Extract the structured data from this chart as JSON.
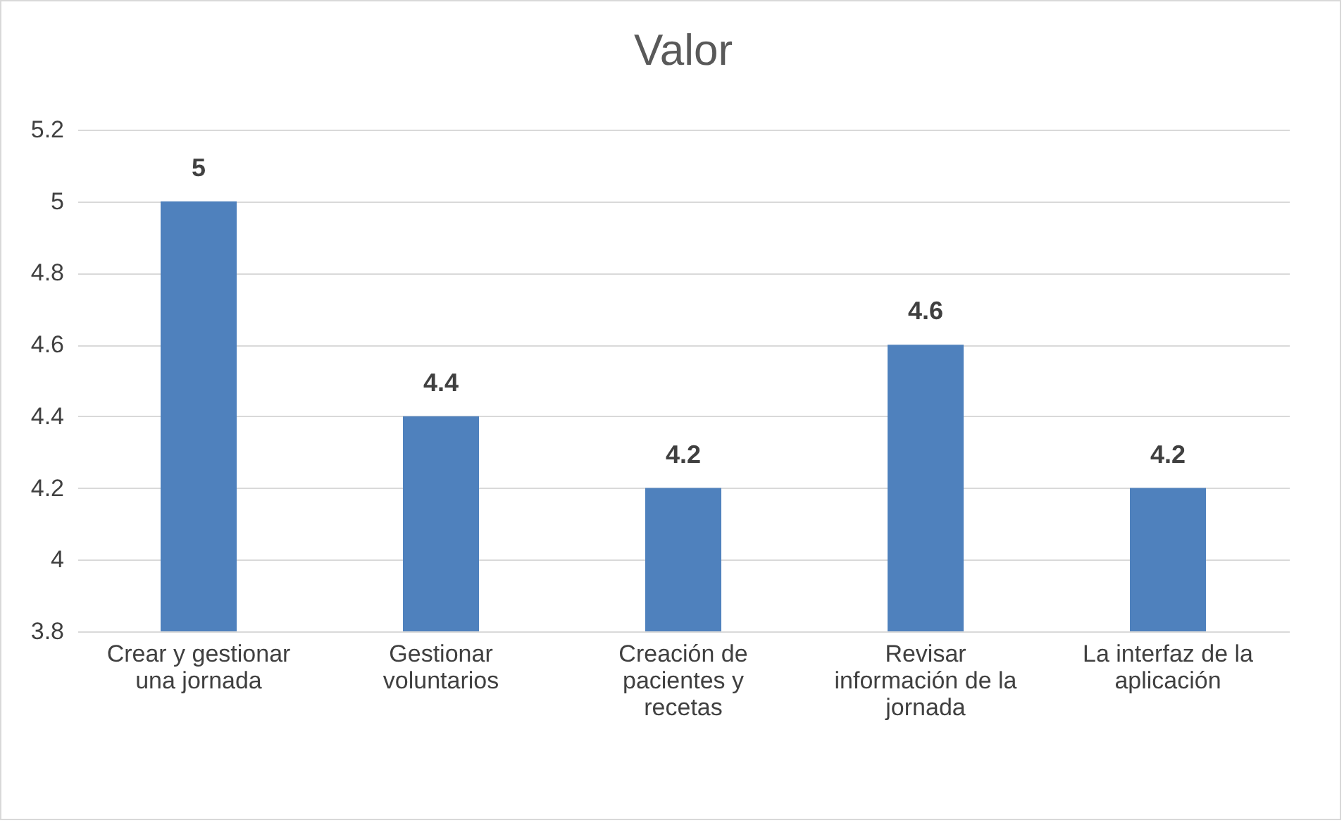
{
  "chart_data": {
    "type": "bar",
    "title": "Valor",
    "categories": [
      "Crear y gestionar una jornada",
      "Gestionar voluntarios",
      "Creación de pacientes y recetas",
      "Revisar información de la jornada",
      "La interfaz de la aplicación"
    ],
    "values": [
      5,
      4.4,
      4.2,
      4.6,
      4.2
    ],
    "color": "#4f81bd",
    "ylim": [
      3.8,
      5.2
    ],
    "yticks": [
      3.8,
      4,
      4.2,
      4.4,
      4.6,
      4.8,
      5,
      5.2
    ],
    "grid": "y",
    "data_labels": true
  }
}
